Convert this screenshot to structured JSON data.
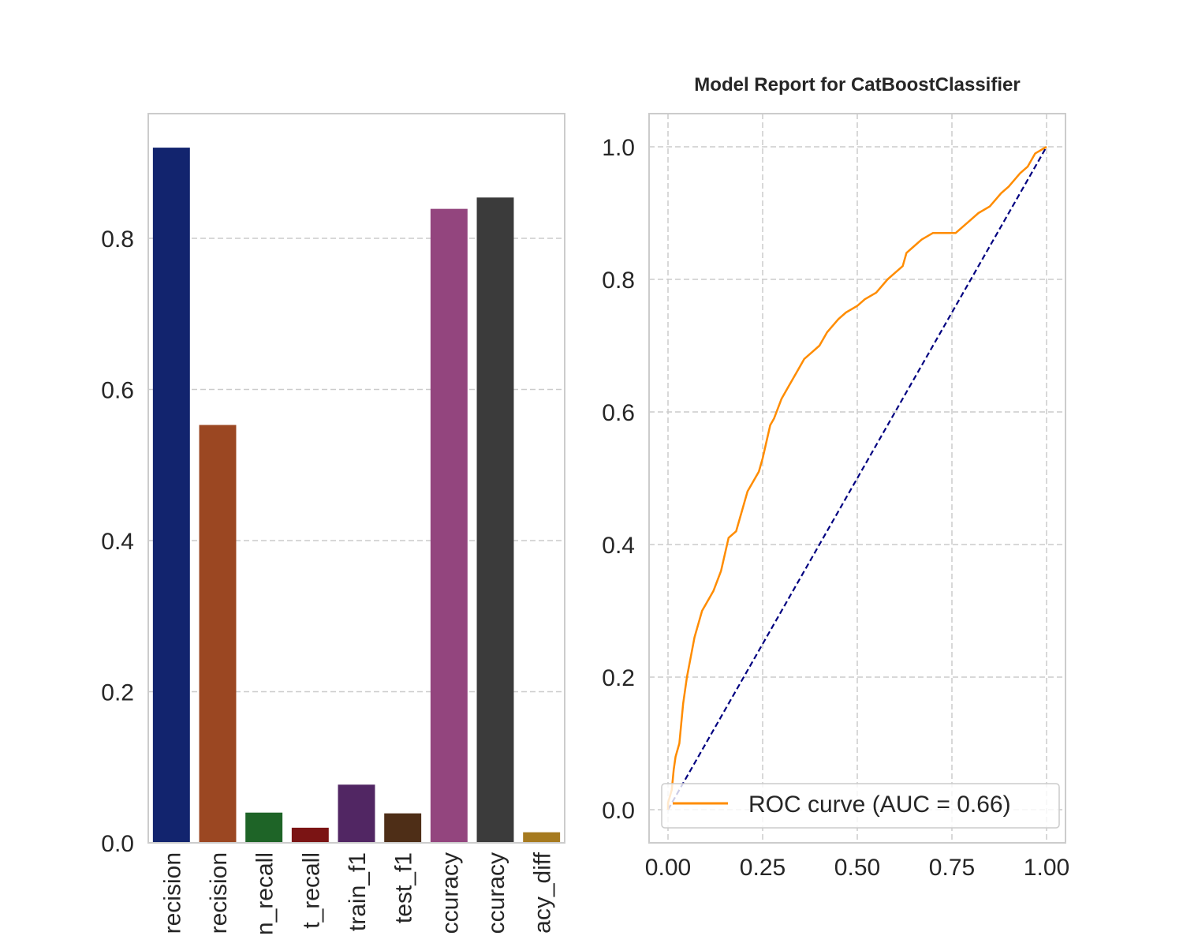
{
  "title": "Model Report for CatBoostClassifier",
  "chart_data": [
    {
      "type": "bar",
      "categories": [
        "train_precision",
        "test_precision",
        "train_recall",
        "test_recall",
        "train_f1",
        "test_f1",
        "train_accuracy",
        "test_accuracy",
        "accuracy_diff"
      ],
      "tick_labels_visible": [
        "recision",
        "recision",
        "n_recall",
        "t_recall",
        "train_f1",
        "test_f1",
        "ccuracy",
        "ccuracy",
        "acy_diff"
      ],
      "values": [
        0.92,
        0.553,
        0.04,
        0.02,
        0.077,
        0.039,
        0.839,
        0.854,
        0.014
      ],
      "colors": [
        "#12246e",
        "#9b4722",
        "#1e6427",
        "#7b1414",
        "#512663",
        "#4e2e17",
        "#93457e",
        "#3b3b3b",
        "#a67a1f"
      ],
      "yticks": [
        "0.0",
        "0.2",
        "0.4",
        "0.6",
        "0.8"
      ],
      "ylim": [
        0,
        0.965
      ],
      "grid": true,
      "xlabel": "",
      "ylabel": ""
    },
    {
      "type": "line",
      "title": "Model Report for CatBoostClassifier",
      "xlim": [
        -0.05,
        1.05
      ],
      "ylim": [
        -0.05,
        1.05
      ],
      "xticks": [
        "0.00",
        "0.25",
        "0.50",
        "0.75",
        "1.00"
      ],
      "yticks": [
        "0.0",
        "0.2",
        "0.4",
        "0.6",
        "0.8",
        "1.0"
      ],
      "grid": true,
      "legend_position": "lower right",
      "series": [
        {
          "name": "ROC curve (AUC = 0.66)",
          "color": "#ff8c00",
          "x": [
            0.0,
            0.0,
            0.005,
            0.01,
            0.015,
            0.02,
            0.03,
            0.035,
            0.04,
            0.05,
            0.06,
            0.07,
            0.08,
            0.09,
            0.1,
            0.11,
            0.12,
            0.14,
            0.16,
            0.18,
            0.19,
            0.2,
            0.21,
            0.22,
            0.24,
            0.25,
            0.27,
            0.28,
            0.3,
            0.32,
            0.34,
            0.36,
            0.38,
            0.4,
            0.42,
            0.45,
            0.47,
            0.5,
            0.52,
            0.55,
            0.58,
            0.6,
            0.62,
            0.63,
            0.65,
            0.67,
            0.7,
            0.73,
            0.76,
            0.78,
            0.8,
            0.82,
            0.85,
            0.88,
            0.9,
            0.93,
            0.95,
            0.97,
            1.0
          ],
          "y": [
            0.0,
            0.01,
            0.02,
            0.03,
            0.06,
            0.08,
            0.1,
            0.13,
            0.16,
            0.2,
            0.23,
            0.26,
            0.28,
            0.3,
            0.31,
            0.32,
            0.33,
            0.36,
            0.41,
            0.42,
            0.44,
            0.46,
            0.48,
            0.49,
            0.51,
            0.53,
            0.58,
            0.59,
            0.62,
            0.64,
            0.66,
            0.68,
            0.69,
            0.7,
            0.72,
            0.74,
            0.75,
            0.76,
            0.77,
            0.78,
            0.8,
            0.81,
            0.82,
            0.84,
            0.85,
            0.86,
            0.87,
            0.87,
            0.87,
            0.88,
            0.89,
            0.9,
            0.91,
            0.93,
            0.94,
            0.96,
            0.97,
            0.99,
            1.0
          ]
        },
        {
          "name": "",
          "color": "#000080",
          "dashed": true,
          "x": [
            0,
            1
          ],
          "y": [
            0,
            1
          ]
        }
      ]
    }
  ]
}
